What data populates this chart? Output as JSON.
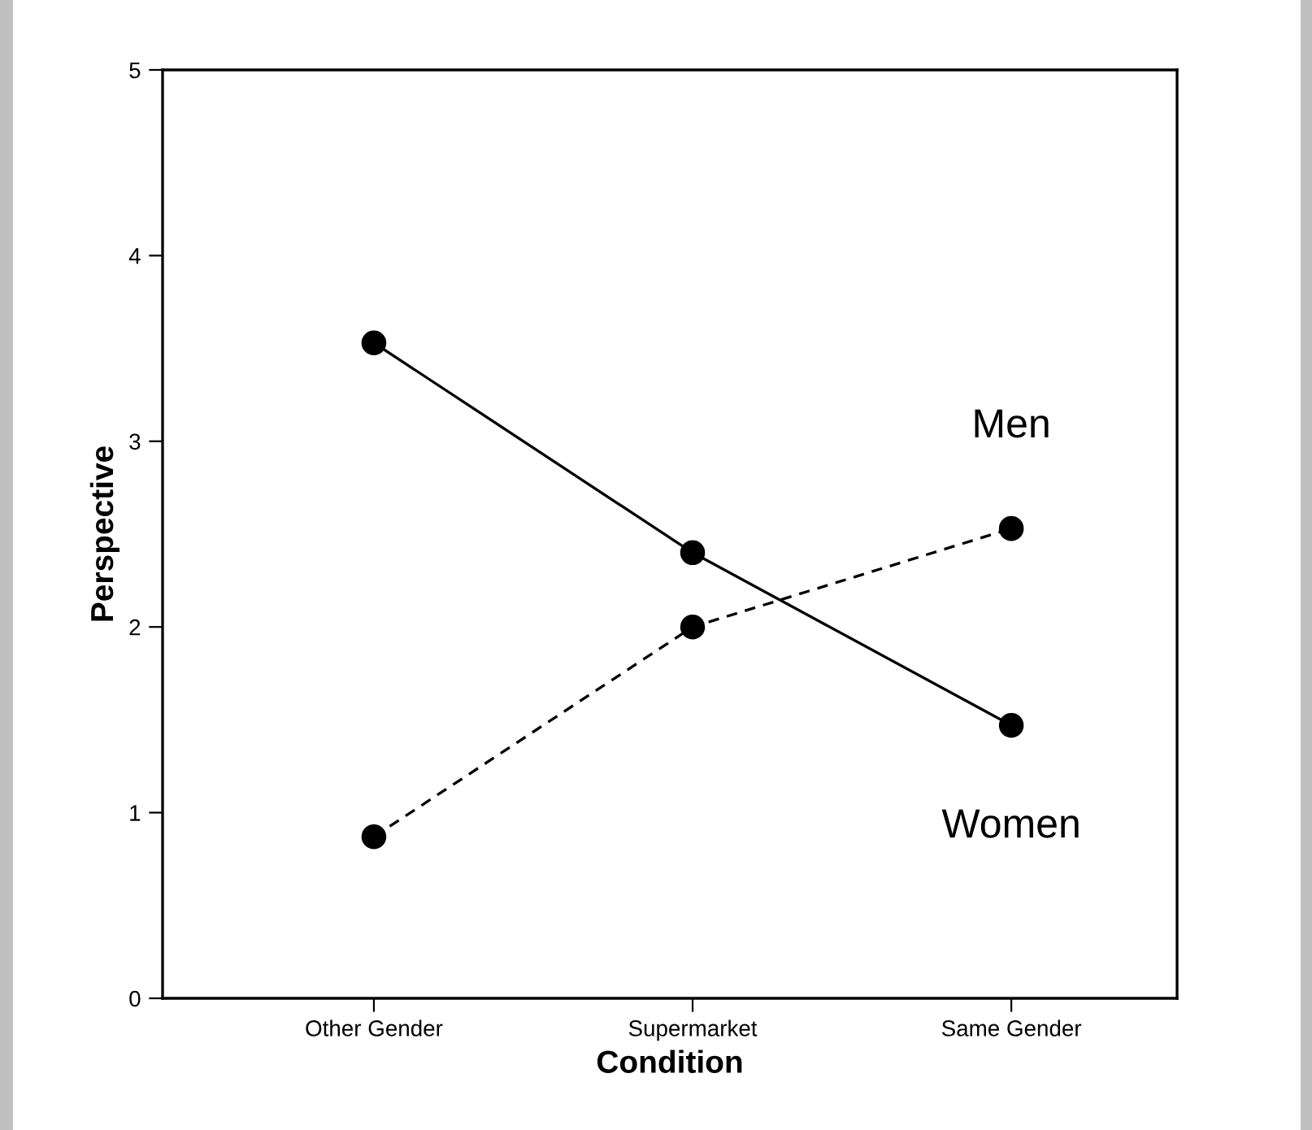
{
  "chart_data": {
    "type": "line",
    "xlabel": "Condition",
    "ylabel": "Perspective",
    "categories": [
      "Other Gender",
      "Supermarket",
      "Same Gender"
    ],
    "series": [
      {
        "name": "Women",
        "color": "#000000",
        "line_style": "solid",
        "values": [
          3.53,
          2.4,
          1.47
        ]
      },
      {
        "name": "Men",
        "color": "#000000",
        "line_style": "dashed",
        "values": [
          0.87,
          2.0,
          2.53
        ]
      }
    ],
    "ylim": [
      0,
      5
    ],
    "yticks": [
      0,
      1,
      2,
      3,
      4,
      5
    ],
    "marker": "circle",
    "grid": false,
    "legend": false
  }
}
